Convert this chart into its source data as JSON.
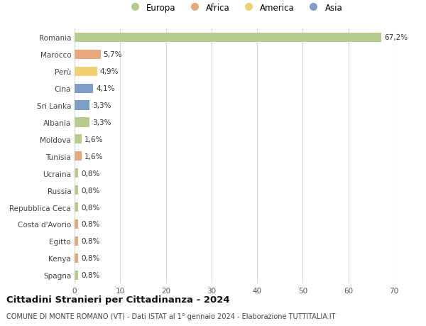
{
  "countries": [
    "Romania",
    "Marocco",
    "Perù",
    "Cina",
    "Sri Lanka",
    "Albania",
    "Moldova",
    "Tunisia",
    "Ucraina",
    "Russia",
    "Repubblica Ceca",
    "Costa d'Avorio",
    "Egitto",
    "Kenya",
    "Spagna"
  ],
  "values": [
    67.2,
    5.7,
    4.9,
    4.1,
    3.3,
    3.3,
    1.6,
    1.6,
    0.8,
    0.8,
    0.8,
    0.8,
    0.8,
    0.8,
    0.8
  ],
  "labels": [
    "67,2%",
    "5,7%",
    "4,9%",
    "4,1%",
    "3,3%",
    "3,3%",
    "1,6%",
    "1,6%",
    "0,8%",
    "0,8%",
    "0,8%",
    "0,8%",
    "0,8%",
    "0,8%",
    "0,8%"
  ],
  "continents": [
    "Europa",
    "Africa",
    "America",
    "Asia",
    "Asia",
    "Europa",
    "Europa",
    "Africa",
    "Europa",
    "Europa",
    "Europa",
    "Africa",
    "Africa",
    "Africa",
    "Europa"
  ],
  "colors": {
    "Europa": "#b5cc8e",
    "Africa": "#e8a87c",
    "America": "#f0d070",
    "Asia": "#7b9fc7"
  },
  "legend_order": [
    "Europa",
    "Africa",
    "America",
    "Asia"
  ],
  "title": "Cittadini Stranieri per Cittadinanza - 2024",
  "subtitle": "COMUNE DI MONTE ROMANO (VT) - Dati ISTAT al 1° gennaio 2024 - Elaborazione TUTTITALIA.IT",
  "xlim": [
    0,
    70
  ],
  "xticks": [
    0,
    10,
    20,
    30,
    40,
    50,
    60,
    70
  ],
  "background_color": "#ffffff",
  "grid_color": "#d8d8d8"
}
